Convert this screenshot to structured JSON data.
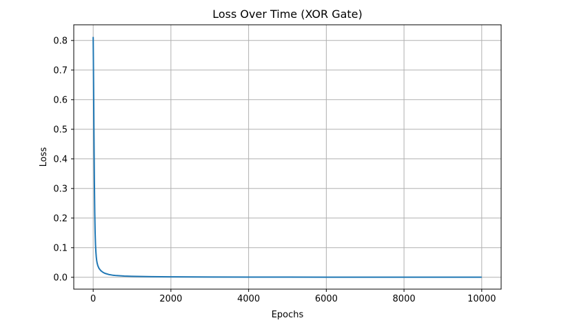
{
  "chart_data": {
    "type": "line",
    "title": "Loss Over Time (XOR Gate)",
    "xlabel": "Epochs",
    "ylabel": "Loss",
    "xlim": [
      -500,
      10500
    ],
    "ylim": [
      -0.04,
      0.853
    ],
    "xticks": [
      0,
      2000,
      4000,
      6000,
      8000,
      10000
    ],
    "xtick_labels": [
      "0",
      "2000",
      "4000",
      "6000",
      "8000",
      "10000"
    ],
    "yticks": [
      0.0,
      0.1,
      0.2,
      0.3,
      0.4,
      0.5,
      0.6,
      0.7,
      0.8
    ],
    "ytick_labels": [
      "0.0",
      "0.1",
      "0.2",
      "0.3",
      "0.4",
      "0.5",
      "0.6",
      "0.7",
      "0.8"
    ],
    "grid": true,
    "line_color": "#1f77b4",
    "series": [
      {
        "x": [
          0,
          10,
          20,
          30,
          40,
          50,
          60,
          70,
          80,
          90,
          100,
          120,
          150,
          200,
          250,
          300,
          400,
          500,
          600,
          800,
          1000,
          1500,
          2000,
          3000,
          4000,
          5000,
          6000,
          7000,
          8000,
          9000,
          10000
        ],
        "y": [
          0.812,
          0.66,
          0.48,
          0.33,
          0.22,
          0.15,
          0.11,
          0.085,
          0.068,
          0.057,
          0.049,
          0.039,
          0.03,
          0.022,
          0.017,
          0.0135,
          0.0095,
          0.0072,
          0.0058,
          0.0042,
          0.0033,
          0.0021,
          0.0015,
          0.001,
          0.0007,
          0.0006,
          0.0005,
          0.0004,
          0.0004,
          0.0003,
          0.0003
        ]
      }
    ]
  }
}
